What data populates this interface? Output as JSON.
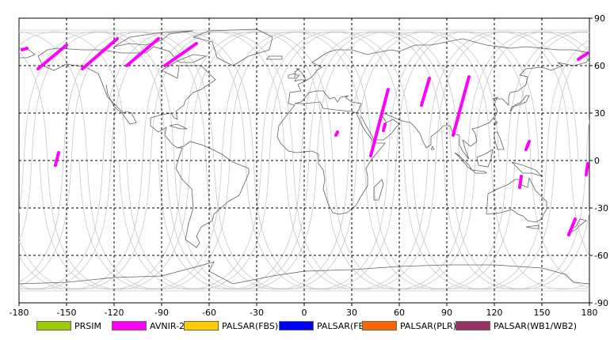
{
  "map": {
    "x_ticks": [
      "-180",
      "-150",
      "-120",
      "-90",
      "-60",
      "-30",
      "0",
      "30",
      "60",
      "90",
      "120",
      "150",
      "180"
    ],
    "y_ticks": [
      "90",
      "60",
      "30",
      "0",
      "-30",
      "-60",
      "-90"
    ],
    "lon_range": [
      -180,
      180
    ],
    "lat_range": [
      -90,
      90
    ],
    "grid": "dashed",
    "colors": {
      "track": "#c8c8c8",
      "coast": "#606060",
      "avnir": "#ff00ff"
    }
  },
  "legend": [
    {
      "label": "PRSIM",
      "color": "#99cc00"
    },
    {
      "label": "AVNIR-2",
      "color": "#ff00ff"
    },
    {
      "label": "PALSAR(FBS)",
      "color": "#ffcc00"
    },
    {
      "label": "PALSAR(FBD)",
      "color": "#0000ff"
    },
    {
      "label": "PALSAR(PLR)",
      "color": "#ff6600"
    },
    {
      "label": "PALSAR(WB1/WB2)",
      "color": "#993366"
    }
  ],
  "observations": [
    {
      "sensor": "AVNIR-2",
      "lon_start": -178,
      "lat_start": 70,
      "lon_end": -175,
      "lat_end": 71
    },
    {
      "sensor": "AVNIR-2",
      "lon_start": -168,
      "lat_start": 58,
      "lon_end": -150,
      "lat_end": 73
    },
    {
      "sensor": "AVNIR-2",
      "lon_start": -140,
      "lat_start": 58,
      "lon_end": -118,
      "lat_end": 77
    },
    {
      "sensor": "AVNIR-2",
      "lon_start": -112,
      "lat_start": 60,
      "lon_end": -92,
      "lat_end": 77
    },
    {
      "sensor": "AVNIR-2",
      "lon_start": -88,
      "lat_start": 60,
      "lon_end": -68,
      "lat_end": 74
    },
    {
      "sensor": "AVNIR-2",
      "lon_start": -157,
      "lat_start": -3,
      "lon_end": -155,
      "lat_end": 5
    },
    {
      "sensor": "AVNIR-2",
      "lon_start": 42,
      "lat_start": 3,
      "lon_end": 53,
      "lat_end": 45
    },
    {
      "sensor": "AVNIR-2",
      "lon_start": 50,
      "lat_start": 19,
      "lon_end": 51,
      "lat_end": 23
    },
    {
      "sensor": "AVNIR-2",
      "lon_start": 20,
      "lat_start": 16,
      "lon_end": 21,
      "lat_end": 18
    },
    {
      "sensor": "AVNIR-2",
      "lon_start": 74,
      "lat_start": 35,
      "lon_end": 79,
      "lat_end": 52
    },
    {
      "sensor": "AVNIR-2",
      "lon_start": 94,
      "lat_start": 16,
      "lon_end": 104,
      "lat_end": 53
    },
    {
      "sensor": "AVNIR-2",
      "lon_start": 140,
      "lat_start": 7,
      "lon_end": 142,
      "lat_end": 12
    },
    {
      "sensor": "AVNIR-2",
      "lon_start": 136,
      "lat_start": -17,
      "lon_end": 137,
      "lat_end": -10
    },
    {
      "sensor": "AVNIR-2",
      "lon_start": 167,
      "lat_start": -47,
      "lon_end": 171,
      "lat_end": -37
    },
    {
      "sensor": "AVNIR-2",
      "lon_start": 178,
      "lat_start": -9,
      "lon_end": 179,
      "lat_end": -2
    },
    {
      "sensor": "AVNIR-2",
      "lon_start": 173,
      "lat_start": 64,
      "lon_end": 179,
      "lat_end": 68
    }
  ]
}
